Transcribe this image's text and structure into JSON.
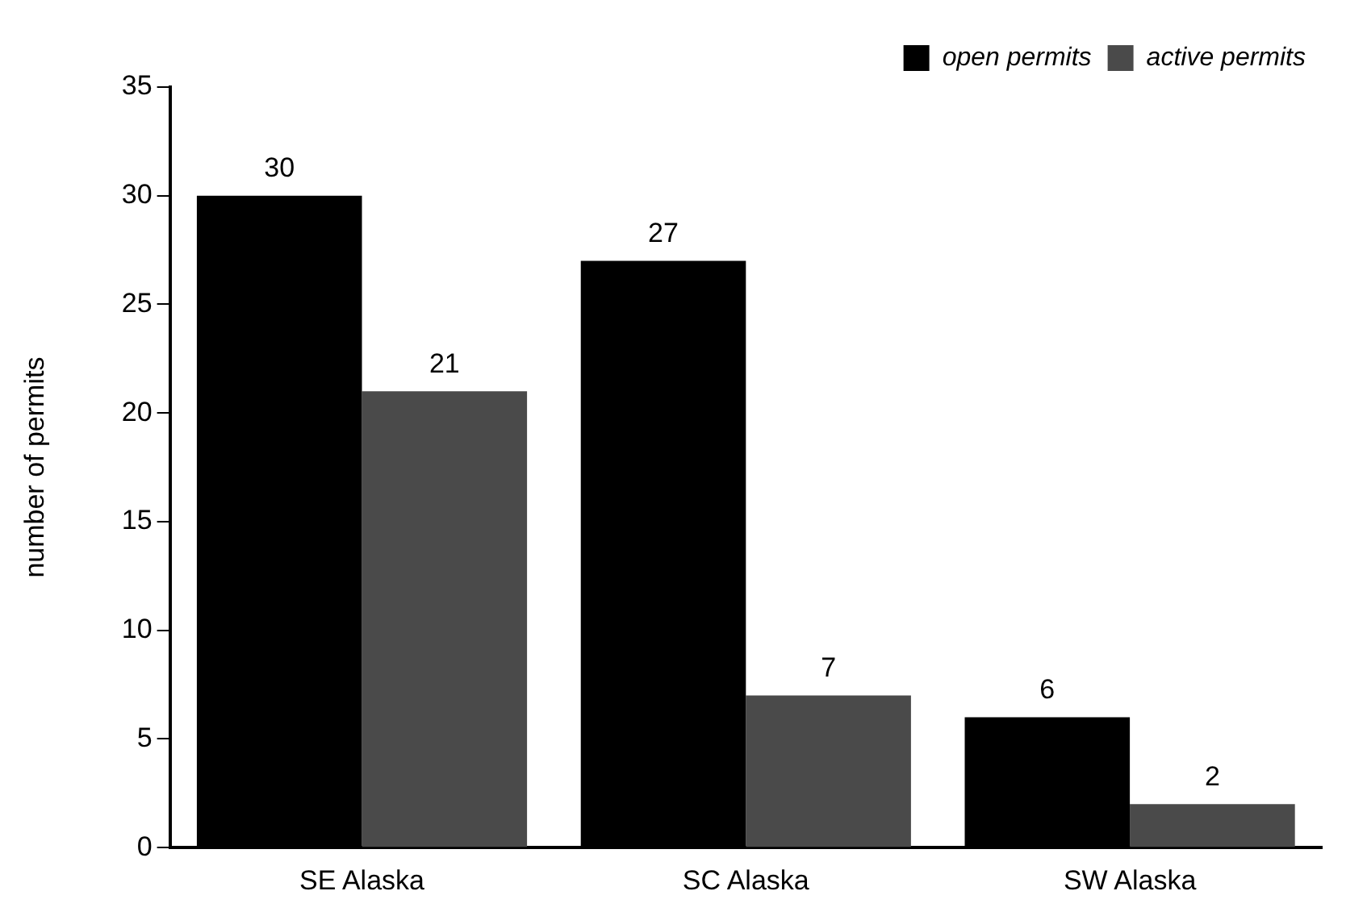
{
  "chart_data": {
    "type": "bar",
    "ylabel": "number of permits",
    "categories": [
      "SE Alaska",
      "SC Alaska",
      "SW Alaska"
    ],
    "series": [
      {
        "name": "open permits",
        "color": "#000000",
        "values": [
          30,
          27,
          6
        ]
      },
      {
        "name": "active permits",
        "color": "#4a4a4a",
        "values": [
          21,
          7,
          2
        ]
      }
    ],
    "ylim": [
      0,
      35
    ],
    "yticks": [
      0,
      5,
      10,
      15,
      20,
      25,
      30,
      35
    ],
    "grid": false,
    "legend": "top right",
    "data_labels": true
  }
}
